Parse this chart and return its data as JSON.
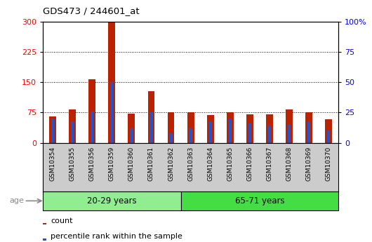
{
  "title": "GDS473 / 244601_at",
  "samples": [
    "GSM10354",
    "GSM10355",
    "GSM10356",
    "GSM10359",
    "GSM10360",
    "GSM10361",
    "GSM10362",
    "GSM10363",
    "GSM10364",
    "GSM10365",
    "GSM10366",
    "GSM10367",
    "GSM10368",
    "GSM10369",
    "GSM10370"
  ],
  "count_values": [
    65,
    82,
    157,
    302,
    72,
    128,
    76,
    75,
    68,
    75,
    70,
    70,
    82,
    76,
    58
  ],
  "percentile_values": [
    20,
    18,
    26,
    50,
    12,
    25,
    8,
    12,
    18,
    20,
    16,
    14,
    15,
    18,
    10
  ],
  "groups": [
    {
      "label": "20-29 years",
      "start": 0,
      "end": 7,
      "color": "#90ee90"
    },
    {
      "label": "65-71 years",
      "start": 7,
      "end": 15,
      "color": "#44dd44"
    }
  ],
  "bar_color_red": "#bb2200",
  "bar_color_blue": "#2255cc",
  "ylim_left": [
    0,
    300
  ],
  "ylim_right": [
    0,
    100
  ],
  "yticks_left": [
    0,
    75,
    150,
    225,
    300
  ],
  "yticks_right": [
    0,
    25,
    50,
    75,
    100
  ],
  "grid_color": "#000000",
  "bg_color": "#ffffff",
  "plot_bg": "#ffffff",
  "xtick_bg": "#cccccc",
  "age_label": "age",
  "legend_count": "count",
  "legend_percentile": "percentile rank within the sample",
  "bar_width": 0.35
}
